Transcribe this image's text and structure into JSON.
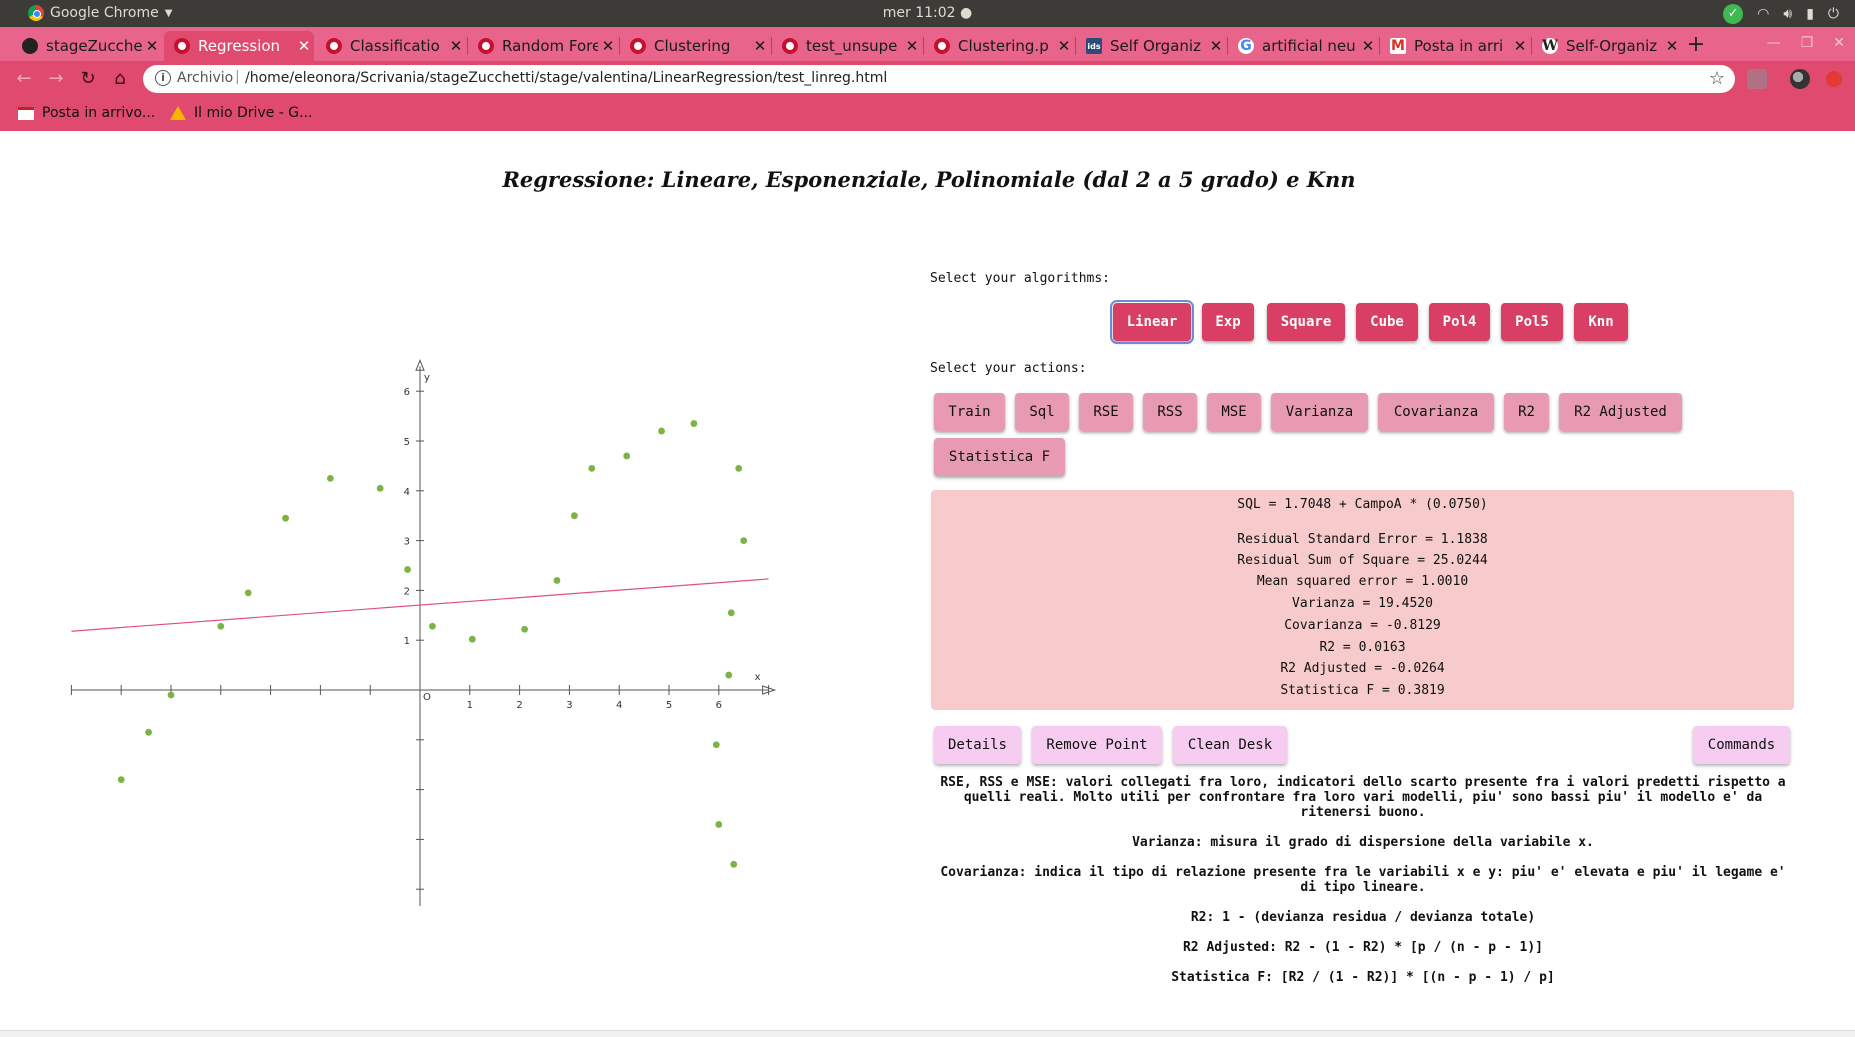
{
  "os": {
    "app_name": "Google Chrome",
    "clock": "mer 11:02 ●"
  },
  "browser": {
    "tabs": [
      {
        "title": "stageZucche",
        "icon": "github-icon",
        "active": false
      },
      {
        "title": "Regression",
        "icon": "codepen-icon",
        "active": true
      },
      {
        "title": "Classificatio",
        "icon": "codepen-icon",
        "active": false
      },
      {
        "title": "Random Fore",
        "icon": "codepen-icon",
        "active": false
      },
      {
        "title": "Clustering",
        "icon": "codepen-icon",
        "active": false
      },
      {
        "title": "test_unsupe",
        "icon": "codepen-icon",
        "active": false
      },
      {
        "title": "Clustering.p",
        "icon": "codepen-icon",
        "active": false
      },
      {
        "title": "Self Organiz",
        "icon": "ids-icon",
        "active": false
      },
      {
        "title": "artificial neu",
        "icon": "google-icon",
        "active": false
      },
      {
        "title": "Posta in arri",
        "icon": "gmail-icon",
        "active": false
      },
      {
        "title": "Self-Organiz",
        "icon": "wikipedia-icon",
        "active": false
      }
    ],
    "address": {
      "scheme": "Archivio",
      "url": "/home/eleonora/Scrivania/stageZucchetti/stage/valentina/LinearRegression/test_linreg.html"
    },
    "bookmarks": [
      {
        "label": "Posta in arrivo...",
        "icon": "gmail-icon"
      },
      {
        "label": "Il mio Drive - G...",
        "icon": "drive-icon"
      }
    ]
  },
  "page": {
    "title": "Regressione: Lineare, Esponenziale, Polinomiale (dal 2 a 5 grado) e Knn",
    "select_algorithms_label": "Select your algorithms:",
    "algorithms": [
      "Linear",
      "Exp",
      "Square",
      "Cube",
      "Pol4",
      "Pol5",
      "Knn"
    ],
    "selected_algorithm": "Linear",
    "select_actions_label": "Select your actions:",
    "actions": [
      "Train",
      "Sql",
      "RSE",
      "RSS",
      "MSE",
      "Varianza",
      "Covarianza",
      "R2",
      "R2 Adjusted",
      "Statistica F"
    ],
    "results": {
      "sql": "SQL = 1.7048 + CampoA * (0.0750)",
      "rse": "Residual Standard Error = 1.1838",
      "rss": "Residual Sum of Square = 25.0244",
      "mse": "Mean squared error = 1.0010",
      "varianza": "Varianza = 19.4520",
      "covarianza": "Covarianza = -0.8129",
      "r2": "R2 = 0.0163",
      "r2_adjusted": "R2 Adjusted = -0.0264",
      "statistica_f": "Statistica F = 0.3819"
    },
    "utility_buttons": {
      "details": "Details",
      "remove_point": "Remove Point",
      "clean_desk": "Clean Desk",
      "commands": "Commands"
    },
    "notes": [
      "RSE, RSS e MSE: valori collegati fra loro, indicatori dello scarto presente fra i valori predetti rispetto a quelli reali. Molto utili per confrontare fra loro vari modelli, piu' sono bassi piu' il modello e' da ritenersi buono.",
      "Varianza: misura il grado di dispersione della variabile x.",
      "Covarianza: indica il tipo di relazione presente fra le variabili x e y: piu' e' elevata e piu' il legame e' di tipo lineare.",
      "R2: 1 - (devianza residua / devianza totale)",
      "R2 Adjusted: R2 - (1 - R2) * [p / (n - p - 1)]",
      "Statistica F: [R2 / (1 - R2)] * [(n - p - 1) / p]"
    ]
  },
  "chart_data": {
    "type": "scatter",
    "x_label": "x",
    "y_label": "y",
    "origin_label": "O",
    "x_ticks": [
      1,
      2,
      3,
      4,
      5,
      6
    ],
    "y_ticks": [
      1,
      2,
      3,
      4,
      5,
      6
    ],
    "xlim": [
      -7,
      7
    ],
    "ylim": [
      -6.5,
      6.5
    ],
    "points": [
      [
        -6.0,
        -1.8
      ],
      [
        -5.45,
        -0.85
      ],
      [
        -5.0,
        -0.1
      ],
      [
        -4.0,
        1.28
      ],
      [
        -3.45,
        1.95
      ],
      [
        -2.7,
        3.45
      ],
      [
        -1.8,
        4.25
      ],
      [
        -0.8,
        4.05
      ],
      [
        -0.25,
        2.42
      ],
      [
        0.25,
        1.28
      ],
      [
        1.05,
        1.02
      ],
      [
        2.1,
        1.22
      ],
      [
        2.75,
        2.2
      ],
      [
        3.1,
        3.5
      ],
      [
        3.45,
        4.45
      ],
      [
        4.15,
        4.7
      ],
      [
        4.85,
        5.2
      ],
      [
        5.5,
        5.35
      ],
      [
        5.95,
        -1.1
      ],
      [
        6.0,
        -2.7
      ],
      [
        6.2,
        0.3
      ],
      [
        6.25,
        1.55
      ],
      [
        6.3,
        -3.5
      ],
      [
        6.4,
        4.45
      ],
      [
        6.5,
        3.0
      ]
    ],
    "regression_line": {
      "intercept": 1.7048,
      "slope": 0.075
    }
  },
  "colors": {
    "accent": "#df4a6e",
    "algo_button": "#d93e64",
    "action_button": "#e79ab1",
    "results_bg": "#f7cbcb",
    "util_button": "#f6ccf0",
    "points": "#7cb342",
    "line": "#e05080"
  }
}
